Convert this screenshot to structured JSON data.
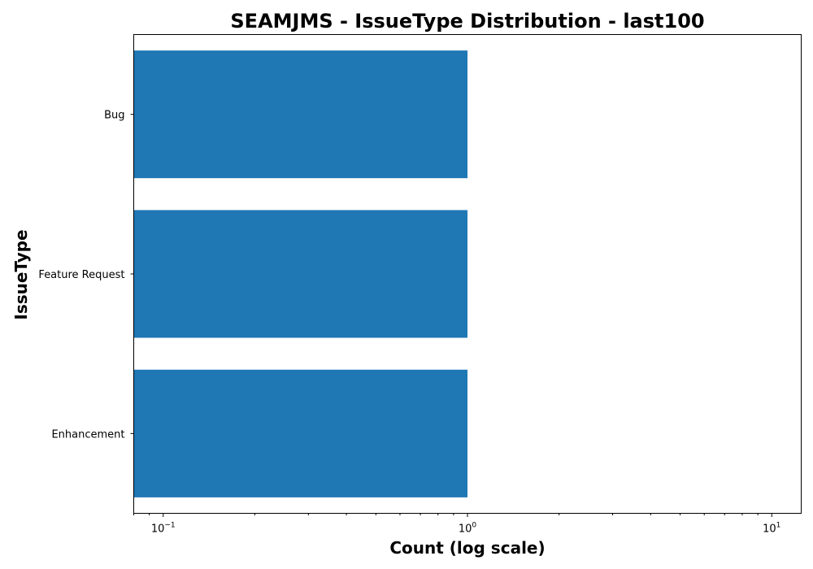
{
  "chart_data": {
    "type": "bar",
    "orientation": "horizontal",
    "title": "SEAMJMS - IssueType Distribution - last100",
    "xlabel": "Count (log scale)",
    "ylabel": "IssueType",
    "x_scale": "log",
    "xlim": [
      0.08,
      12.5
    ],
    "categories": [
      "Bug",
      "Feature Request",
      "Enhancement"
    ],
    "values": [
      1,
      1,
      1
    ],
    "x_major_ticks": [
      {
        "base": "10",
        "exp": "−1",
        "value": 0.1
      },
      {
        "base": "10",
        "exp": "0",
        "value": 1
      },
      {
        "base": "10",
        "exp": "1",
        "value": 10
      }
    ],
    "bar_color": "#1f77b4",
    "grid": false,
    "legend": "none"
  }
}
